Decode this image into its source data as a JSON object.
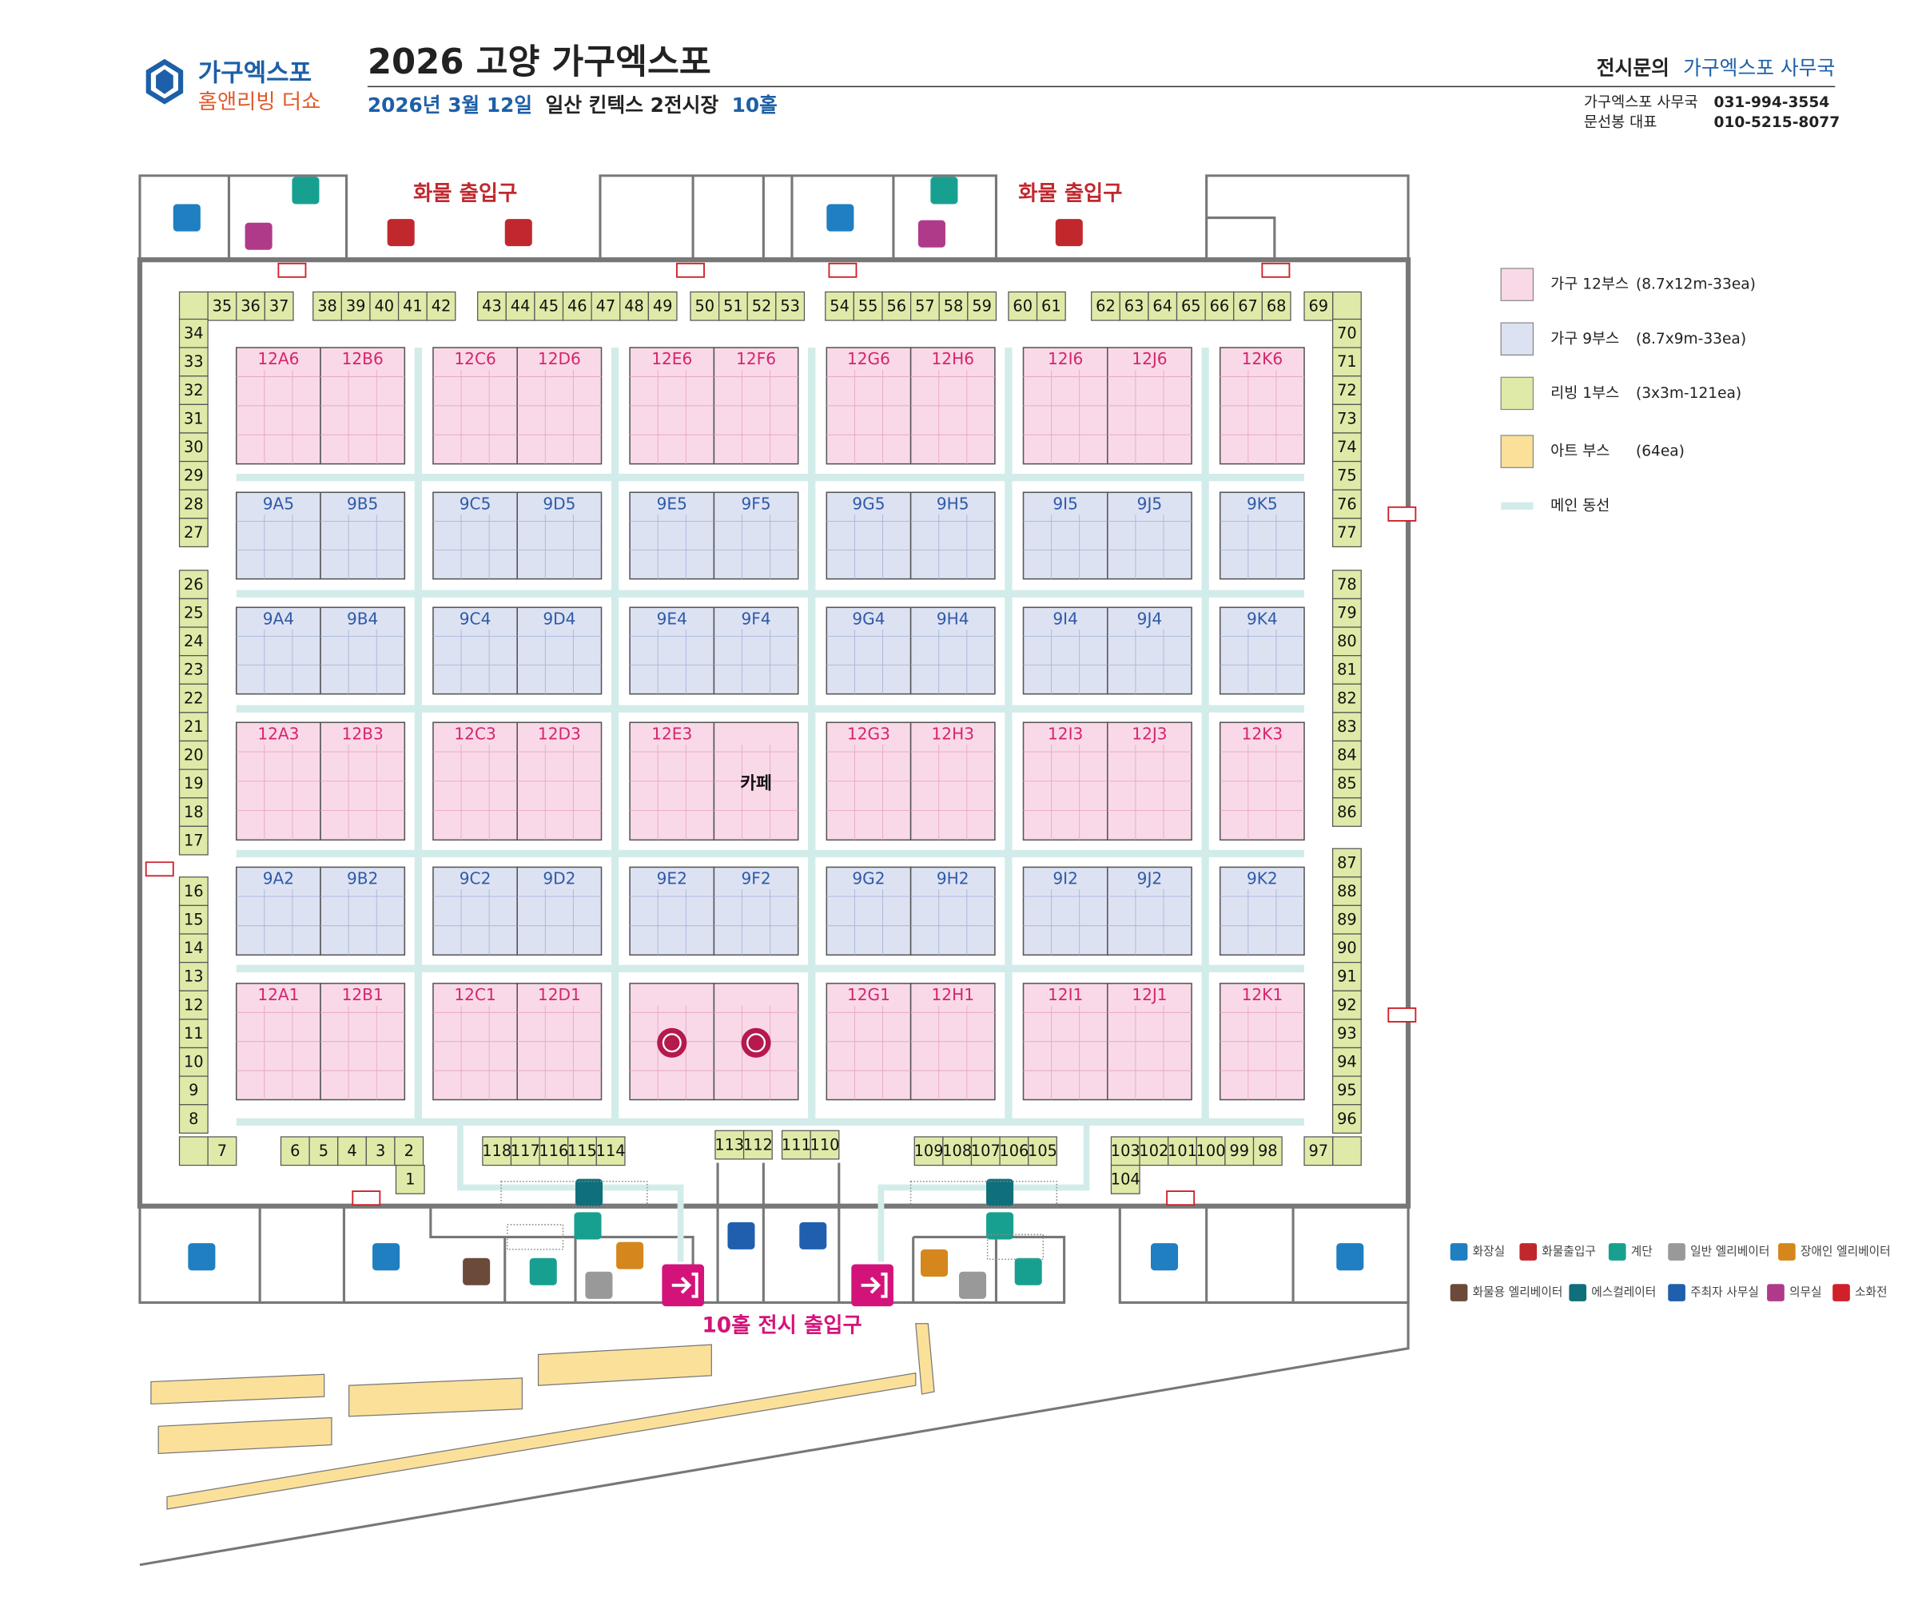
{
  "header": {
    "logo_top": "가구엑스포",
    "logo_bottom": "홈앤리빙 더쇼",
    "title": "2026 고양 가구엑스포",
    "subtitle": [
      "2026년 3월 12일",
      "일산 킨텍스 2전시장",
      "10홀"
    ]
  },
  "contact": {
    "label": "전시문의",
    "org": "가구엑스포 사무국",
    "lines": [
      [
        "가구엑스포 사무국",
        "031-994-3554"
      ],
      [
        "문선봉 대표",
        "010-5215-8077"
      ]
    ]
  },
  "map": {
    "cargo_entrances": [
      "화물 출입구",
      "화물 출입구"
    ],
    "main_entrance": "10홀 전시 출입구",
    "cafe": "카페",
    "booth_rows": [
      [
        "12A6",
        "12B6",
        "12C6",
        "12D6",
        "12E6",
        "12F6",
        "12G6",
        "12H6",
        "12I6",
        "12J6",
        "12K6"
      ],
      [
        "9A5",
        "9B5",
        "9C5",
        "9D5",
        "9E5",
        "9F5",
        "9G5",
        "9H5",
        "9I5",
        "9J5",
        "9K5"
      ],
      [
        "9A4",
        "9B4",
        "9C4",
        "9D4",
        "9E4",
        "9F4",
        "9G4",
        "9H4",
        "9I4",
        "9J4",
        "9K4"
      ],
      [
        "12A3",
        "12B3",
        "12C3",
        "12D3",
        "12E3",
        null,
        "12G3",
        "12H3",
        "12I3",
        "12J3",
        "12K3"
      ],
      [
        "9A2",
        "9B2",
        "9C2",
        "9D2",
        "9E2",
        "9F2",
        "9G2",
        "9H2",
        "9I2",
        "9J2",
        "9K2"
      ],
      [
        "12A1",
        "12B1",
        "12C1",
        "12D1",
        null,
        null,
        "12G1",
        "12H1",
        "12I1",
        "12J1",
        "12K1"
      ]
    ],
    "small_booths": [
      [
        "35",
        "36",
        "37"
      ],
      [
        "38",
        "39",
        "40",
        "41",
        "42"
      ],
      [
        "43",
        "44",
        "45",
        "46",
        "47",
        "48",
        "49"
      ],
      [
        "50",
        "51",
        "52",
        "53"
      ],
      [
        "54",
        "55",
        "56",
        "57",
        "58",
        "59"
      ],
      [
        "60",
        "61"
      ],
      [
        "62",
        "63",
        "64",
        "65",
        "66",
        "67",
        "68"
      ],
      [
        "69"
      ],
      [
        "34",
        "33",
        "32",
        "31",
        "30",
        "29",
        "28",
        "27"
      ],
      [
        "26",
        "25",
        "24",
        "23",
        "22",
        "21",
        "20",
        "19",
        "18",
        "17"
      ],
      [
        "16",
        "15",
        "14",
        "13",
        "12",
        "11",
        "10",
        "9",
        "8"
      ],
      [
        "7"
      ],
      [
        "6",
        "5",
        "4",
        "3",
        "2"
      ],
      [
        "1"
      ],
      [
        "118",
        "117",
        "116",
        "115",
        "114"
      ],
      [
        "113",
        "112"
      ],
      [
        "111",
        "110"
      ],
      [
        "109",
        "108",
        "107",
        "106",
        "105"
      ],
      [
        "103",
        "102",
        "101",
        "100",
        "99",
        "98"
      ],
      [
        "104"
      ],
      [
        "97"
      ],
      [
        "70",
        "71",
        "72",
        "73",
        "74",
        "75",
        "76",
        "77"
      ],
      [
        "78",
        "79",
        "80",
        "81",
        "82",
        "83",
        "84",
        "85",
        "86"
      ],
      [
        "87",
        "88",
        "89",
        "90",
        "91",
        "92",
        "93",
        "94",
        "95",
        "96"
      ]
    ]
  },
  "legend": [
    {
      "label": "가구 12부스",
      "spec": "(8.7x12m-33ea)",
      "color": "#f9d9e8"
    },
    {
      "label": "가구 9부스",
      "spec": "(8.7x9m-33ea)",
      "color": "#dde2f2"
    },
    {
      "label": "리빙 1부스",
      "spec": "(3x3m-121ea)",
      "color": "#dfeaa8"
    },
    {
      "label": "아트 부스",
      "spec": "(64ea)",
      "color": "#fbe09a"
    },
    {
      "label": "메인 동선",
      "color": "#d2ecea"
    }
  ],
  "icon_legend": [
    {
      "label": "화장실",
      "color": "#1f7fc0"
    },
    {
      "label": "화물출입구",
      "color": "#c0282e"
    },
    {
      "label": "계단",
      "color": "#17a08f"
    },
    {
      "label": "일반 엘리베이터",
      "color": "#999999"
    },
    {
      "label": "장애인 엘리베이터",
      "color": "#d5871d"
    },
    {
      "label": "화물용 엘리베이터",
      "color": "#6b4a3a"
    },
    {
      "label": "에스컬레이터",
      "color": "#0f6f7a"
    },
    {
      "label": "주최자 사무실",
      "color": "#1f5fae"
    },
    {
      "label": "의무실",
      "color": "#b03a8a"
    },
    {
      "label": "소화전",
      "color": "#d0202a"
    }
  ]
}
